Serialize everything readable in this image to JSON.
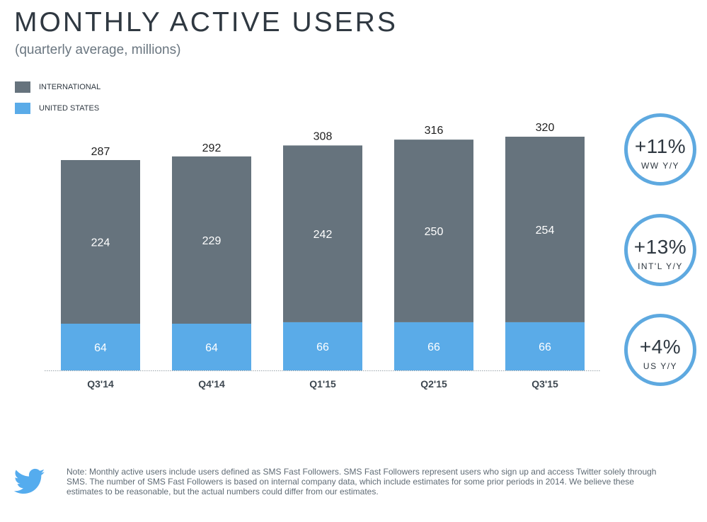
{
  "header": {
    "title": "MONTHLY ACTIVE USERS",
    "subtitle": "(quarterly average, millions)"
  },
  "legend": [
    {
      "label": "INTERNATIONAL",
      "color": "#66737d"
    },
    {
      "label": "UNITED STATES",
      "color": "#5aabe8"
    }
  ],
  "chart_data": {
    "type": "bar",
    "stacked": true,
    "categories": [
      "Q3'14",
      "Q4'14",
      "Q1'15",
      "Q2'15",
      "Q3'15"
    ],
    "series": [
      {
        "name": "UNITED STATES",
        "color": "#5aabe8",
        "values": [
          64,
          64,
          66,
          66,
          66
        ]
      },
      {
        "name": "INTERNATIONAL",
        "color": "#66737d",
        "values": [
          224,
          229,
          242,
          250,
          254
        ]
      }
    ],
    "totals": [
      287,
      292,
      308,
      316,
      320
    ],
    "title": "MONTHLY ACTIVE USERS",
    "subtitle": "(quarterly average, millions)",
    "ylim": [
      0,
      320
    ],
    "grid": false,
    "legend_position": "top-left"
  },
  "callouts": [
    {
      "value": "+11%",
      "caption": "WW Y/Y"
    },
    {
      "value": "+13%",
      "caption": "INT'L Y/Y"
    },
    {
      "value": "+4%",
      "caption": "US Y/Y"
    }
  ],
  "footer": {
    "logo_icon": "twitter-bird-icon",
    "logo_color": "#55acee",
    "note": "Note: Monthly active users include users defined as SMS Fast Followers. SMS Fast Followers represent users who sign up and access Twitter solely through SMS. The number of SMS Fast Followers is based on internal company data, which include estimates for some prior periods in 2014. We believe these estimates to be reasonable, but the actual numbers could differ from our estimates."
  }
}
